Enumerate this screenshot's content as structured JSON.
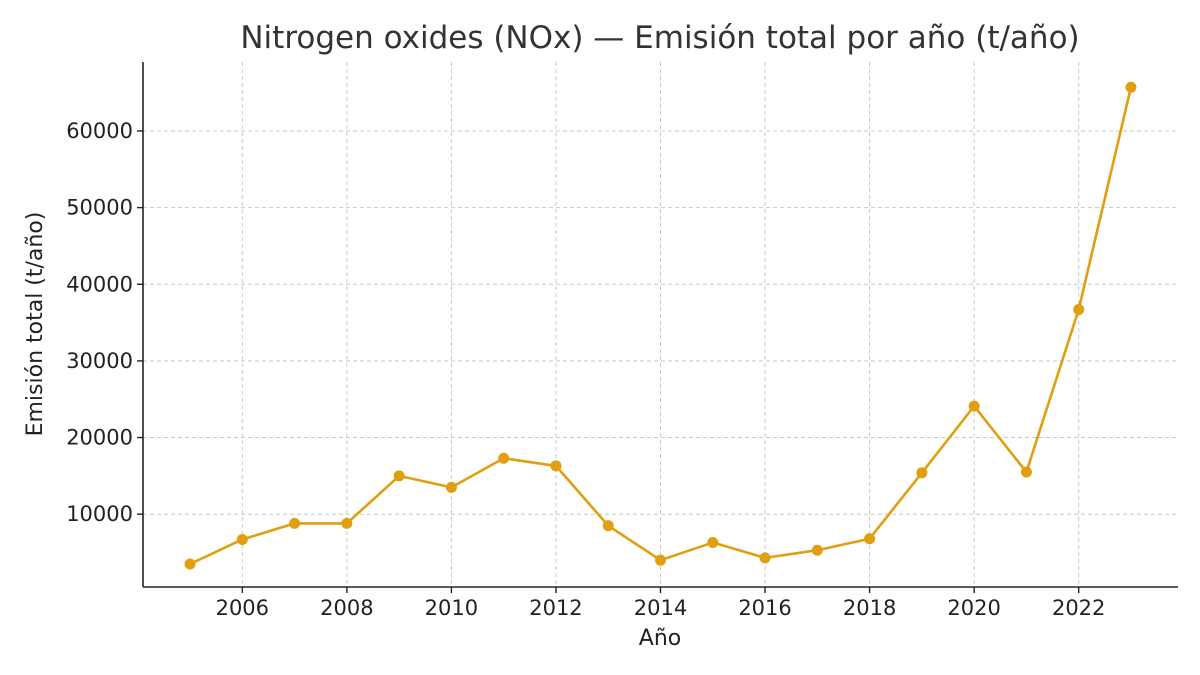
{
  "chart_data": {
    "type": "line",
    "title": "Nitrogen oxides (NOx) — Emisión total por año (t/año)",
    "xlabel": "Año",
    "ylabel": "Emisión total (t/año)",
    "x": [
      2005,
      2006,
      2007,
      2008,
      2009,
      2010,
      2011,
      2012,
      2013,
      2014,
      2015,
      2016,
      2017,
      2018,
      2019,
      2020,
      2021,
      2022,
      2023
    ],
    "series": [
      {
        "values": [
          3500,
          6700,
          8800,
          8800,
          15000,
          13500,
          17300,
          16300,
          8500,
          4000,
          6300,
          4300,
          5300,
          6800,
          15400,
          24100,
          15500,
          36700,
          65700
        ],
        "color": "#e09f0e"
      }
    ],
    "x_ticks": [
      2006,
      2008,
      2010,
      2012,
      2014,
      2016,
      2018,
      2020,
      2022
    ],
    "y_ticks": [
      10000,
      20000,
      30000,
      40000,
      50000,
      60000
    ],
    "xlim": [
      2004.1,
      2023.9
    ],
    "ylim": [
      500,
      69000
    ],
    "grid": true,
    "legend": "none"
  },
  "colors": {
    "line": "#e09f0e",
    "grid": "#c8c8c8",
    "axis": "#222222",
    "title": "#333333"
  }
}
